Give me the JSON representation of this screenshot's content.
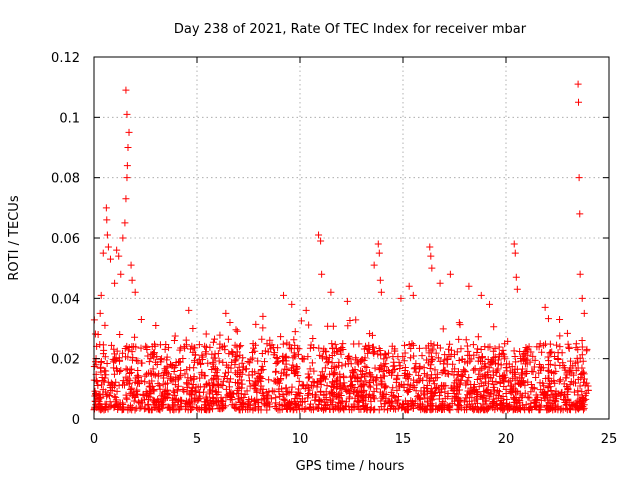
{
  "chart_data": {
    "type": "scatter",
    "title": "Day 238 of 2021, Rate Of TEC Index for receiver mbar",
    "xlabel": "GPS time / hours",
    "ylabel": "ROTI / TECUs",
    "xlim": [
      0,
      25
    ],
    "ylim": [
      0,
      0.12
    ],
    "x_ticks": [
      0,
      5,
      10,
      15,
      20,
      25
    ],
    "x_tick_labels": [
      "0",
      "5",
      "10",
      "15",
      "20",
      "25"
    ],
    "y_ticks": [
      0,
      0.02,
      0.04,
      0.06,
      0.08,
      0.1,
      0.12
    ],
    "y_tick_labels": [
      "0",
      "0.02",
      "0.04",
      "0.06",
      "0.08",
      "0.1",
      "0.12"
    ],
    "grid": true,
    "marker": "+",
    "color": "#ff0000",
    "series": [
      {
        "name": "ROTI",
        "note": "dense band of samples roughly 0.002-0.03 TECU/s across 0-24 h; notable outliers listed",
        "points": [
          [
            0.1,
            0.02
          ],
          [
            0.2,
            0.028
          ],
          [
            0.3,
            0.035
          ],
          [
            0.35,
            0.041
          ],
          [
            0.45,
            0.055
          ],
          [
            0.6,
            0.07
          ],
          [
            0.62,
            0.066
          ],
          [
            0.65,
            0.061
          ],
          [
            0.7,
            0.057
          ],
          [
            0.8,
            0.053
          ],
          [
            1.0,
            0.045
          ],
          [
            1.1,
            0.056
          ],
          [
            1.2,
            0.054
          ],
          [
            1.3,
            0.048
          ],
          [
            1.4,
            0.06
          ],
          [
            1.5,
            0.065
          ],
          [
            1.55,
            0.073
          ],
          [
            1.6,
            0.08
          ],
          [
            1.62,
            0.084
          ],
          [
            1.65,
            0.09
          ],
          [
            1.7,
            0.095
          ],
          [
            1.6,
            0.101
          ],
          [
            1.55,
            0.109
          ],
          [
            1.8,
            0.051
          ],
          [
            1.85,
            0.046
          ],
          [
            2.0,
            0.042
          ],
          [
            2.3,
            0.033
          ],
          [
            3.0,
            0.031
          ],
          [
            4.6,
            0.036
          ],
          [
            4.8,
            0.03
          ],
          [
            6.4,
            0.035
          ],
          [
            6.6,
            0.032
          ],
          [
            8.2,
            0.034
          ],
          [
            9.2,
            0.041
          ],
          [
            9.6,
            0.038
          ],
          [
            10.3,
            0.036
          ],
          [
            10.9,
            0.061
          ],
          [
            11.0,
            0.059
          ],
          [
            11.05,
            0.048
          ],
          [
            11.5,
            0.042
          ],
          [
            12.3,
            0.039
          ],
          [
            13.6,
            0.051
          ],
          [
            13.8,
            0.058
          ],
          [
            13.85,
            0.055
          ],
          [
            13.9,
            0.046
          ],
          [
            13.95,
            0.042
          ],
          [
            14.9,
            0.04
          ],
          [
            15.3,
            0.044
          ],
          [
            15.5,
            0.041
          ],
          [
            16.3,
            0.057
          ],
          [
            16.35,
            0.054
          ],
          [
            16.4,
            0.05
          ],
          [
            16.8,
            0.045
          ],
          [
            17.3,
            0.048
          ],
          [
            18.2,
            0.044
          ],
          [
            18.8,
            0.041
          ],
          [
            19.2,
            0.038
          ],
          [
            20.4,
            0.058
          ],
          [
            20.45,
            0.055
          ],
          [
            20.5,
            0.047
          ],
          [
            20.55,
            0.043
          ],
          [
            21.9,
            0.037
          ],
          [
            22.6,
            0.033
          ],
          [
            23.5,
            0.111
          ],
          [
            23.52,
            0.105
          ],
          [
            23.55,
            0.08
          ],
          [
            23.58,
            0.068
          ],
          [
            23.6,
            0.048
          ],
          [
            23.7,
            0.04
          ],
          [
            23.8,
            0.035
          ]
        ]
      }
    ]
  }
}
